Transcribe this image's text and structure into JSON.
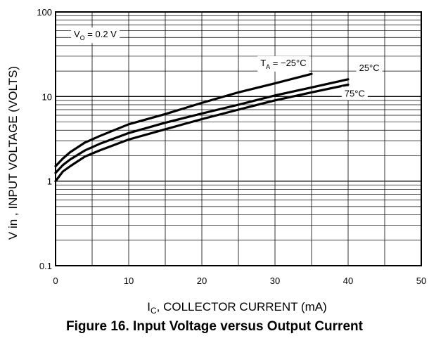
{
  "caption": "Figure 16. Input Voltage versus Output Current",
  "chart_data": {
    "type": "line",
    "title": "",
    "xlabel_main": "I",
    "xlabel_sub": "C",
    "xlabel_rest": ", COLLECTOR CURRENT (mA)",
    "ylabel": "V in , INPUT VOLTAGE (VOLTS)",
    "xlim": [
      0,
      50
    ],
    "ylim": [
      0.1,
      100
    ],
    "yscale": "log",
    "grid": true,
    "xticks": [
      0,
      10,
      20,
      30,
      40,
      50
    ],
    "xtick_labels": [
      "0",
      "10",
      "20",
      "30",
      "40",
      "50"
    ],
    "yticks": [
      0.1,
      1,
      10,
      100
    ],
    "ytick_labels": [
      "0.1",
      "1",
      "10",
      "100"
    ],
    "condition": {
      "main": "V",
      "sub": "O",
      "rest": " = 0.2 V"
    },
    "series": [
      {
        "name_main": "T",
        "name_sub": "A",
        "name_rest": " = −25°C",
        "x": [
          0,
          1,
          2,
          4,
          6,
          10,
          15,
          20,
          25,
          30,
          35
        ],
        "y": [
          1.5,
          1.85,
          2.2,
          2.85,
          3.4,
          4.7,
          6.2,
          8.4,
          11.2,
          14.3,
          18.5
        ]
      },
      {
        "name_main": "25°C",
        "name_sub": "",
        "name_rest": "",
        "x": [
          0,
          1,
          2,
          4,
          6,
          10,
          15,
          20,
          25,
          30,
          35,
          40
        ],
        "y": [
          1.25,
          1.55,
          1.8,
          2.3,
          2.75,
          3.7,
          4.9,
          6.3,
          8.0,
          10.3,
          12.8,
          16.0
        ]
      },
      {
        "name_main": "75°C",
        "name_sub": "",
        "name_rest": "",
        "x": [
          0,
          1,
          2,
          4,
          6,
          10,
          15,
          20,
          25,
          30,
          35,
          40
        ],
        "y": [
          1.0,
          1.3,
          1.5,
          1.95,
          2.3,
          3.1,
          4.1,
          5.4,
          7.0,
          9.0,
          11.2,
          13.8
        ]
      }
    ]
  }
}
